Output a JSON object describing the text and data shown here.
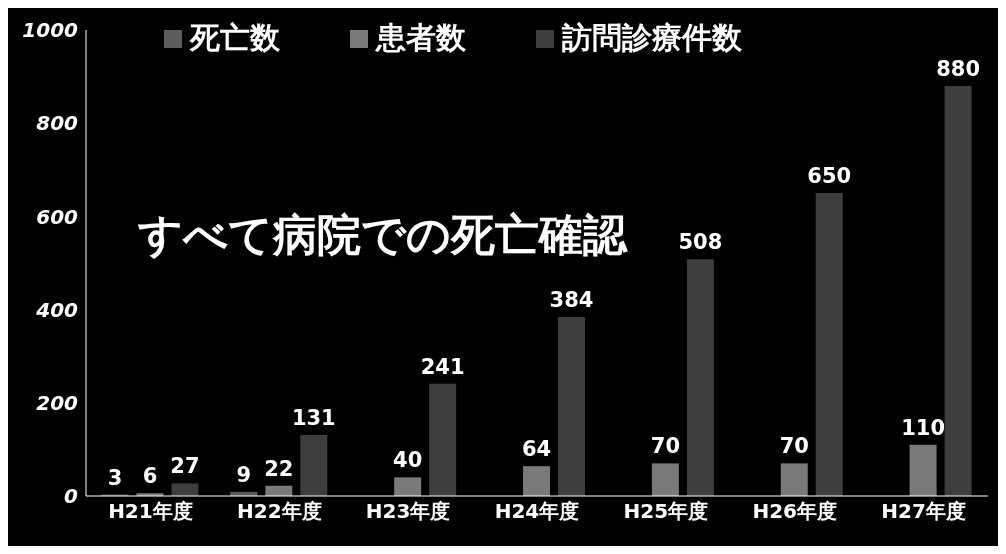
{
  "chart_data": {
    "type": "bar",
    "categories": [
      "H21年度",
      "H22年度",
      "H23年度",
      "H24年度",
      "H25年度",
      "H26年度",
      "H27年度"
    ],
    "series": [
      {
        "name": "死亡数",
        "color": "#5c5c5c",
        "values": [
          3,
          9,
          null,
          null,
          null,
          null,
          null
        ]
      },
      {
        "name": "患者数",
        "color": "#7a7a7a",
        "values": [
          6,
          22,
          40,
          64,
          70,
          70,
          110
        ]
      },
      {
        "name": "訪問診療件数",
        "color": "#3e3e3e",
        "values": [
          27,
          131,
          241,
          384,
          508,
          650,
          880
        ]
      }
    ],
    "ylim": [
      0,
      1000
    ],
    "yticks": [
      0,
      200,
      400,
      600,
      800,
      1000
    ],
    "grid": false,
    "legend": "top",
    "data_labels": true,
    "annotations": [
      "すべて病院での死亡確認"
    ]
  }
}
